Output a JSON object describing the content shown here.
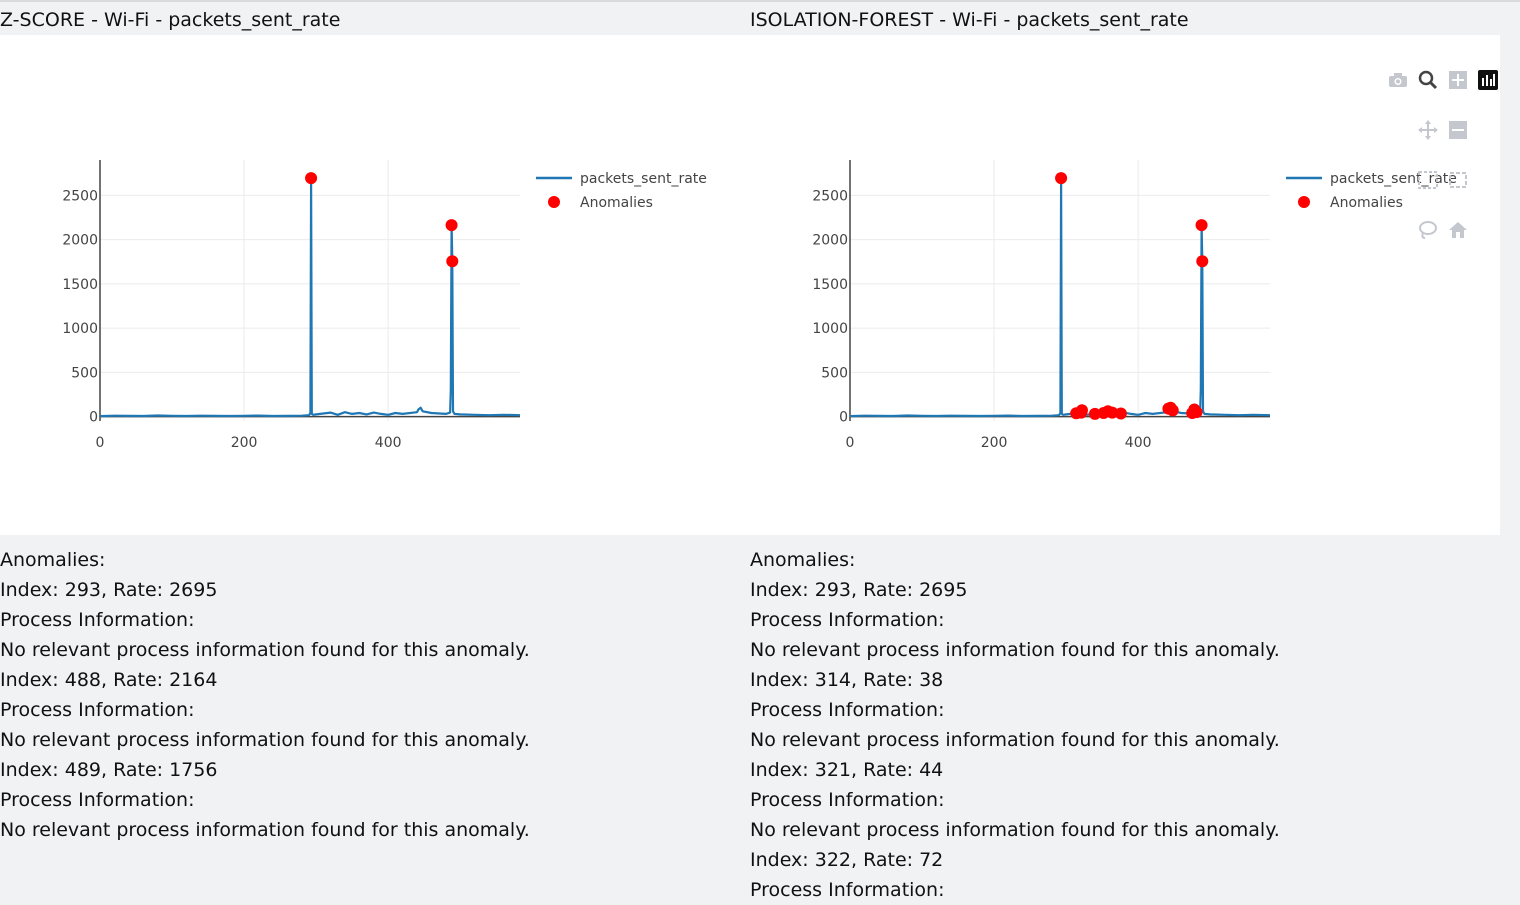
{
  "panels": [
    {
      "title": "Z-SCORE - Wi-Fi - packets_sent_rate",
      "anomalies_header": "Anomalies:",
      "anomaly_lines": [
        "Index: 293, Rate: 2695",
        "Process Information:",
        "No relevant process information found for this anomaly.",
        "Index: 488, Rate: 2164",
        "Process Information:",
        "No relevant process information found for this anomaly.",
        "Index: 489, Rate: 1756",
        "Process Information:",
        "No relevant process information found for this anomaly."
      ]
    },
    {
      "title": "ISOLATION-FOREST - Wi-Fi - packets_sent_rate",
      "anomalies_header": "Anomalies:",
      "anomaly_lines": [
        "Index: 293, Rate: 2695",
        "Process Information:",
        "No relevant process information found for this anomaly.",
        "Index: 314, Rate: 38",
        "Process Information:",
        "No relevant process information found for this anomaly.",
        "Index: 321, Rate: 44",
        "Process Information:",
        "No relevant process information found for this anomaly.",
        "Index: 322, Rate: 72",
        "Process Information:"
      ]
    }
  ],
  "modebar": {
    "icons": [
      "camera-icon",
      "zoom-icon",
      "zoom-in-icon",
      "autoscale-icon",
      "pan-icon",
      "zoom-out-icon",
      "box-select-icon",
      "lasso-icon",
      "home-icon"
    ]
  },
  "chart_data": [
    {
      "type": "line",
      "title": "Z-SCORE - Wi-Fi - packets_sent_rate",
      "xlim": [
        0,
        583
      ],
      "ylim": [
        -50,
        2900
      ],
      "x_ticks": [
        0,
        200,
        400
      ],
      "y_ticks": [
        0,
        500,
        1000,
        1500,
        2000,
        2500
      ],
      "series": [
        {
          "name": "packets_sent_rate",
          "color": "#1f77b4",
          "x": [
            0,
            20,
            40,
            60,
            80,
            100,
            120,
            140,
            160,
            180,
            200,
            220,
            240,
            260,
            280,
            290,
            292,
            293,
            294,
            296,
            300,
            310,
            320,
            330,
            340,
            350,
            360,
            370,
            380,
            390,
            400,
            410,
            420,
            440,
            442,
            445,
            448,
            460,
            480,
            486,
            487,
            488,
            489,
            490,
            492,
            500,
            520,
            540,
            560,
            583
          ],
          "y": [
            5,
            10,
            8,
            6,
            12,
            9,
            7,
            10,
            8,
            6,
            9,
            11,
            7,
            8,
            10,
            15,
            40,
            2695,
            30,
            20,
            25,
            35,
            45,
            20,
            50,
            30,
            40,
            25,
            45,
            30,
            20,
            40,
            30,
            50,
            80,
            100,
            60,
            40,
            30,
            45,
            300,
            2164,
            1756,
            60,
            30,
            25,
            20,
            15,
            20,
            15
          ]
        },
        {
          "name": "Anomalies",
          "color": "#ff0000",
          "x": [
            293,
            488,
            489
          ],
          "y": [
            2695,
            2164,
            1756
          ]
        }
      ],
      "legend": [
        "packets_sent_rate",
        "Anomalies"
      ],
      "legend_position": "right"
    },
    {
      "type": "line",
      "title": "ISOLATION-FOREST - Wi-Fi - packets_sent_rate",
      "xlim": [
        0,
        583
      ],
      "ylim": [
        -50,
        2900
      ],
      "x_ticks": [
        0,
        200,
        400
      ],
      "y_ticks": [
        0,
        500,
        1000,
        1500,
        2000,
        2500
      ],
      "series": [
        {
          "name": "packets_sent_rate",
          "color": "#1f77b4",
          "x": [
            0,
            20,
            40,
            60,
            80,
            100,
            120,
            140,
            160,
            180,
            200,
            220,
            240,
            260,
            280,
            290,
            292,
            293,
            294,
            296,
            300,
            310,
            320,
            330,
            340,
            350,
            360,
            370,
            380,
            390,
            400,
            410,
            420,
            440,
            442,
            445,
            448,
            460,
            480,
            486,
            487,
            488,
            489,
            490,
            492,
            500,
            520,
            540,
            560,
            583
          ],
          "y": [
            5,
            10,
            8,
            6,
            12,
            9,
            7,
            10,
            8,
            6,
            9,
            11,
            7,
            8,
            10,
            15,
            40,
            2695,
            30,
            20,
            25,
            35,
            45,
            20,
            50,
            30,
            40,
            25,
            45,
            30,
            20,
            40,
            30,
            50,
            80,
            100,
            60,
            40,
            30,
            45,
            300,
            2164,
            1756,
            60,
            30,
            25,
            20,
            15,
            20,
            15
          ]
        },
        {
          "name": "Anomalies",
          "color": "#ff0000",
          "x": [
            293,
            314,
            321,
            322,
            340,
            352,
            358,
            364,
            376,
            442,
            445,
            448,
            475,
            478,
            481,
            488,
            489
          ],
          "y": [
            2695,
            38,
            44,
            72,
            30,
            40,
            60,
            45,
            35,
            90,
            100,
            70,
            40,
            80,
            50,
            2164,
            1756
          ]
        }
      ],
      "legend": [
        "packets_sent_rate",
        "Anomalies"
      ],
      "legend_position": "right"
    }
  ]
}
